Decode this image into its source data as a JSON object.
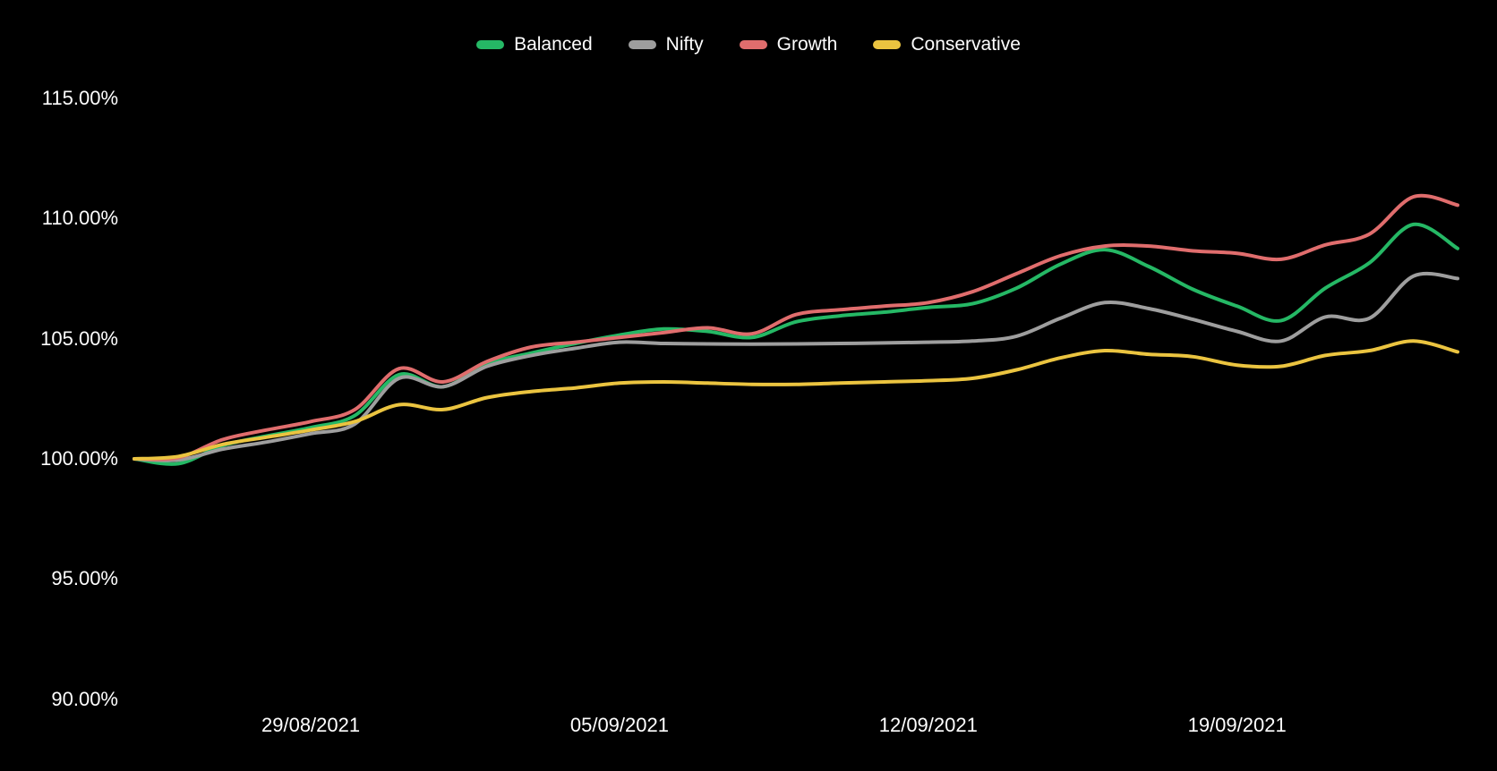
{
  "chart_data": {
    "type": "line",
    "title": "",
    "background": "#000000",
    "text_color": "#ffffff",
    "grid": false,
    "legend_position": "top",
    "ylim": [
      90,
      115
    ],
    "y_ticks": [
      {
        "value": 115,
        "label": "115.00%"
      },
      {
        "value": 110,
        "label": "110.00%"
      },
      {
        "value": 105,
        "label": "105.00%"
      },
      {
        "value": 100,
        "label": "100.00%"
      },
      {
        "value": 95,
        "label": "95.00%"
      },
      {
        "value": 90,
        "label": "90.00%"
      }
    ],
    "x": [
      "25/08/2021",
      "26/08/2021",
      "27/08/2021",
      "28/08/2021",
      "29/08/2021",
      "30/08/2021",
      "31/08/2021",
      "01/09/2021",
      "02/09/2021",
      "03/09/2021",
      "04/09/2021",
      "05/09/2021",
      "06/09/2021",
      "07/09/2021",
      "08/09/2021",
      "09/09/2021",
      "10/09/2021",
      "11/09/2021",
      "12/09/2021",
      "13/09/2021",
      "14/09/2021",
      "15/09/2021",
      "16/09/2021",
      "17/09/2021",
      "18/09/2021",
      "19/09/2021",
      "20/09/2021",
      "21/09/2021",
      "22/09/2021",
      "23/09/2021",
      "24/09/2021"
    ],
    "x_tick_labels": [
      {
        "label": "29/08/2021",
        "index": 4
      },
      {
        "label": "05/09/2021",
        "index": 11
      },
      {
        "label": "12/09/2021",
        "index": 18
      },
      {
        "label": "19/09/2021",
        "index": 25
      }
    ],
    "series": [
      {
        "name": "Balanced",
        "color": "#25b865",
        "values": [
          100.0,
          99.8,
          100.55,
          100.95,
          101.3,
          101.8,
          103.5,
          103.0,
          103.95,
          104.4,
          104.8,
          105.15,
          105.4,
          105.3,
          105.05,
          105.7,
          105.95,
          106.1,
          106.3,
          106.45,
          107.1,
          108.1,
          108.7,
          108.0,
          107.05,
          106.35,
          105.75,
          107.1,
          108.15,
          109.75,
          108.75
        ]
      },
      {
        "name": "Nifty",
        "color": "#9e9e9e",
        "values": [
          100.0,
          99.95,
          100.4,
          100.7,
          101.05,
          101.45,
          103.35,
          103.0,
          103.85,
          104.3,
          104.6,
          104.85,
          104.8,
          104.78,
          104.77,
          104.78,
          104.8,
          104.82,
          104.85,
          104.9,
          105.1,
          105.85,
          106.5,
          106.25,
          105.8,
          105.3,
          104.9,
          105.9,
          105.85,
          107.6,
          107.5
        ]
      },
      {
        "name": "Growth",
        "color": "#e06d6d",
        "values": [
          100.0,
          100.05,
          100.8,
          101.2,
          101.55,
          102.05,
          103.75,
          103.2,
          104.05,
          104.65,
          104.85,
          105.05,
          105.25,
          105.45,
          105.2,
          106.0,
          106.2,
          106.35,
          106.5,
          106.95,
          107.7,
          108.45,
          108.85,
          108.85,
          108.65,
          108.55,
          108.3,
          108.9,
          109.35,
          110.9,
          110.55
        ]
      },
      {
        "name": "Conservative",
        "color": "#ebc440",
        "values": [
          100.0,
          100.1,
          100.6,
          100.9,
          101.2,
          101.55,
          102.25,
          102.05,
          102.55,
          102.8,
          102.95,
          103.15,
          103.2,
          103.15,
          103.1,
          103.1,
          103.15,
          103.2,
          103.25,
          103.35,
          103.7,
          104.2,
          104.5,
          104.35,
          104.25,
          103.9,
          103.85,
          104.3,
          104.5,
          104.9,
          104.45
        ]
      }
    ]
  }
}
